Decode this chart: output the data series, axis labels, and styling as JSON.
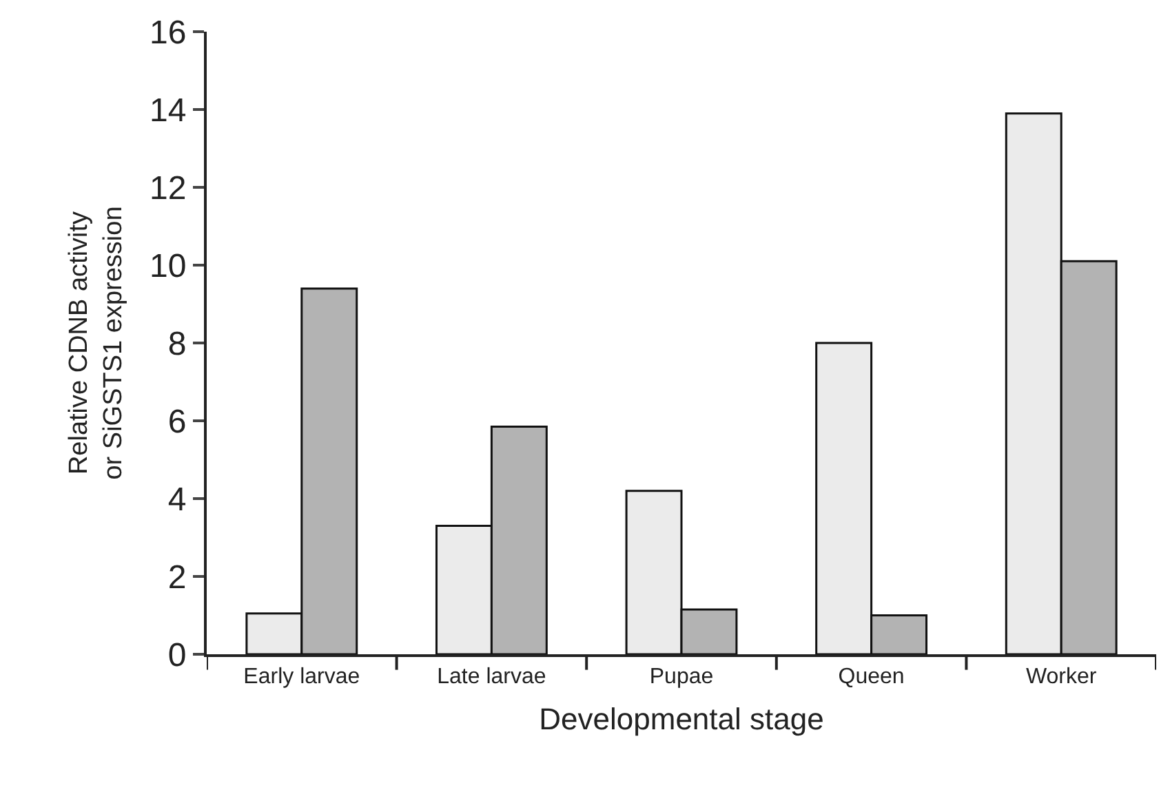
{
  "chart_data": {
    "type": "bar",
    "xlabel": "Developmental stage",
    "ylabel": "Relative CDNB activity\nor SiGSTS1 expression",
    "categories": [
      "Early larvae",
      "Late larvae",
      "Pupae",
      "Queen",
      "Worker"
    ],
    "series": [
      {
        "color": "#ebebeb",
        "values": [
          1.05,
          3.3,
          4.2,
          8.0,
          13.9
        ]
      },
      {
        "color": "#b3b3b3",
        "values": [
          9.4,
          5.85,
          1.15,
          1.0,
          10.1
        ]
      }
    ],
    "ylim": [
      0,
      16
    ],
    "yticks": [
      0,
      2,
      4,
      6,
      8,
      10,
      12,
      14,
      16
    ]
  }
}
